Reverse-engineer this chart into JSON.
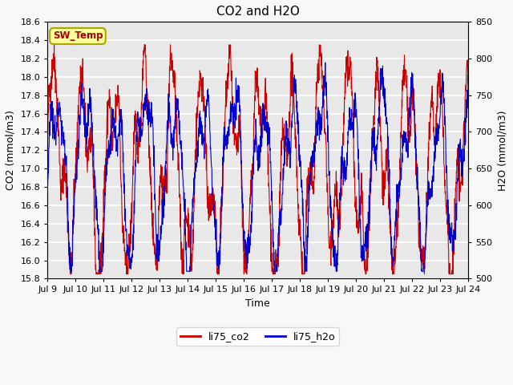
{
  "title": "CO2 and H2O",
  "xlabel": "Time",
  "ylabel_left": "CO2 (mmol/m3)",
  "ylabel_right": "H2O (mmol/m3)",
  "ylim_left": [
    15.8,
    18.6
  ],
  "ylim_right": [
    500,
    850
  ],
  "yticks_left": [
    15.8,
    16.0,
    16.2,
    16.4,
    16.6,
    16.8,
    17.0,
    17.2,
    17.4,
    17.6,
    17.8,
    18.0,
    18.2,
    18.4,
    18.6
  ],
  "yticks_right": [
    500,
    550,
    600,
    650,
    700,
    750,
    800,
    850
  ],
  "xtick_labels": [
    "Jul 9",
    "Jul 10",
    "Jul 11",
    "Jul 12",
    "Jul 13",
    "Jul 14",
    "Jul 15",
    "Jul 16",
    "Jul 17",
    "Jul 18",
    "Jul 19",
    "Jul 20",
    "Jul 21",
    "Jul 22",
    "Jul 23",
    "Jul 24"
  ],
  "color_co2": "#cc0000",
  "color_h2o": "#0000cc",
  "legend_label_co2": "li75_co2",
  "legend_label_h2o": "li75_h2o",
  "annotation_text": "SW_Temp",
  "annotation_bg": "#ffff99",
  "annotation_border": "#aaa800",
  "annotation_text_color": "#aa0000",
  "plot_bg": "#e8e8e8",
  "fig_bg": "#f8f8f8",
  "grid_color": "#ffffff",
  "seed": 42
}
